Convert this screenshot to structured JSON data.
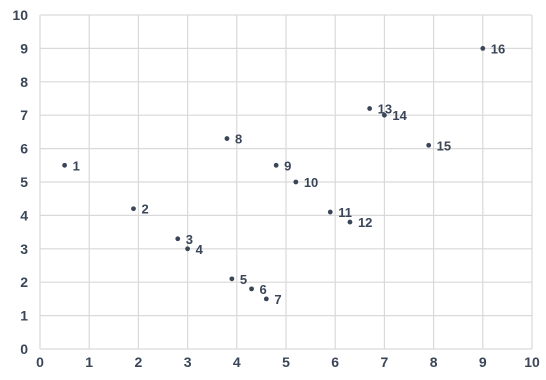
{
  "chart_data": {
    "type": "scatter",
    "title": "",
    "xlabel": "",
    "ylabel": "",
    "xlim": [
      0,
      10
    ],
    "ylim": [
      0,
      10
    ],
    "x_ticks": [
      "0",
      "1",
      "2",
      "3",
      "4",
      "5",
      "6",
      "7",
      "8",
      "9",
      "10"
    ],
    "y_ticks": [
      "0",
      "1",
      "2",
      "3",
      "4",
      "5",
      "6",
      "7",
      "8",
      "9",
      "10"
    ],
    "grid": true,
    "legend": "none",
    "colors": {
      "point": "#3a4658",
      "label": "#3a4658",
      "tick": "#3a4658",
      "grid": "#d9d9d9"
    },
    "points": [
      {
        "label": "1",
        "x": 0.5,
        "y": 5.5
      },
      {
        "label": "2",
        "x": 1.9,
        "y": 4.2
      },
      {
        "label": "3",
        "x": 2.8,
        "y": 3.3
      },
      {
        "label": "4",
        "x": 3.0,
        "y": 3.0
      },
      {
        "label": "5",
        "x": 3.9,
        "y": 2.1
      },
      {
        "label": "6",
        "x": 4.3,
        "y": 1.8
      },
      {
        "label": "7",
        "x": 4.6,
        "y": 1.5
      },
      {
        "label": "8",
        "x": 3.8,
        "y": 6.3
      },
      {
        "label": "9",
        "x": 4.8,
        "y": 5.5
      },
      {
        "label": "10",
        "x": 5.2,
        "y": 5.0
      },
      {
        "label": "11",
        "x": 5.9,
        "y": 4.1
      },
      {
        "label": "12",
        "x": 6.3,
        "y": 3.8
      },
      {
        "label": "13",
        "x": 6.7,
        "y": 7.2
      },
      {
        "label": "14",
        "x": 7.0,
        "y": 7.0
      },
      {
        "label": "15",
        "x": 7.9,
        "y": 6.1
      },
      {
        "label": "16",
        "x": 9.0,
        "y": 9.0
      }
    ]
  }
}
